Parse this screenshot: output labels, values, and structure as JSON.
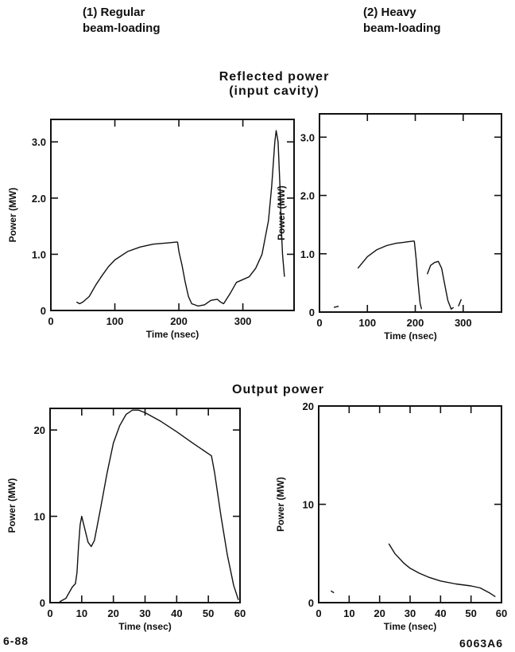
{
  "headers": {
    "col1_line1": "(1) Regular",
    "col1_line2": "beam-loading",
    "col2_line1": "(2) Heavy",
    "col2_line2": "beam-loading"
  },
  "sections": {
    "reflected_line1": "Reflected power",
    "reflected_line2": "(input cavity)",
    "output": "Output power"
  },
  "footer": {
    "left": "6-88",
    "right": "6063A6"
  },
  "chart_data": [
    {
      "id": "reflected-regular",
      "type": "line",
      "xlabel": "Time (nsec)",
      "ylabel": "Power (MW)",
      "xlim": [
        0,
        380
      ],
      "ylim": [
        0,
        3.4
      ],
      "xticks": [
        0,
        100,
        200,
        300
      ],
      "yticks": [
        0,
        1.0,
        2.0,
        3.0
      ],
      "ytick_labels": [
        "0",
        "1.0",
        "2.0",
        "3.0"
      ],
      "series": [
        {
          "segments": [
            [
              [
                40,
                0.15
              ],
              [
                45,
                0.12
              ],
              [
                50,
                0.15
              ],
              [
                60,
                0.25
              ],
              [
                70,
                0.45
              ],
              [
                80,
                0.62
              ],
              [
                90,
                0.78
              ],
              [
                100,
                0.9
              ],
              [
                120,
                1.05
              ],
              [
                140,
                1.13
              ],
              [
                160,
                1.18
              ],
              [
                180,
                1.2
              ],
              [
                198,
                1.22
              ]
            ],
            [
              [
                198,
                1.22
              ],
              [
                200,
                1.05
              ],
              [
                205,
                0.8
              ],
              [
                210,
                0.5
              ],
              [
                215,
                0.25
              ],
              [
                220,
                0.12
              ],
              [
                230,
                0.08
              ],
              [
                240,
                0.1
              ],
              [
                250,
                0.18
              ],
              [
                260,
                0.2
              ],
              [
                265,
                0.15
              ],
              [
                270,
                0.12
              ],
              [
                280,
                0.3
              ],
              [
                290,
                0.5
              ],
              [
                300,
                0.55
              ],
              [
                310,
                0.6
              ],
              [
                320,
                0.75
              ],
              [
                330,
                1.0
              ],
              [
                340,
                1.6
              ],
              [
                345,
                2.2
              ],
              [
                350,
                3.0
              ],
              [
                352,
                3.2
              ],
              [
                355,
                3.0
              ],
              [
                358,
                2.2
              ],
              [
                360,
                1.5
              ],
              [
                362,
                1.0
              ],
              [
                365,
                0.6
              ]
            ]
          ]
        }
      ]
    },
    {
      "id": "reflected-heavy",
      "type": "line",
      "xlabel": "Time (nsec)",
      "ylabel": "Power (MW)",
      "xlim": [
        0,
        380
      ],
      "ylim": [
        0,
        3.4
      ],
      "xticks": [
        0,
        100,
        200,
        300
      ],
      "yticks": [
        0,
        1.0,
        2.0,
        3.0
      ],
      "ytick_labels": [
        "0",
        "1.0",
        "2.0",
        "3.0"
      ],
      "series": [
        {
          "segments": [
            [
              [
                30,
                0.08
              ],
              [
                40,
                0.1
              ]
            ],
            [
              [
                80,
                0.75
              ],
              [
                90,
                0.85
              ],
              [
                100,
                0.95
              ],
              [
                120,
                1.07
              ],
              [
                140,
                1.14
              ],
              [
                160,
                1.18
              ],
              [
                180,
                1.2
              ],
              [
                198,
                1.22
              ]
            ],
            [
              [
                198,
                1.22
              ],
              [
                202,
                0.9
              ],
              [
                206,
                0.5
              ],
              [
                210,
                0.15
              ],
              [
                213,
                0.05
              ]
            ],
            [
              [
                225,
                0.65
              ],
              [
                232,
                0.8
              ],
              [
                240,
                0.85
              ],
              [
                248,
                0.87
              ],
              [
                255,
                0.75
              ],
              [
                262,
                0.45
              ],
              [
                268,
                0.2
              ],
              [
                275,
                0.05
              ],
              [
                280,
                0.08
              ]
            ],
            [
              [
                290,
                0.1
              ],
              [
                296,
                0.22
              ]
            ]
          ]
        }
      ]
    },
    {
      "id": "output-regular",
      "type": "line",
      "xlabel": "Time (nsec)",
      "ylabel": "Power (MW)",
      "xlim": [
        0,
        60
      ],
      "ylim": [
        0,
        22.5
      ],
      "xticks": [
        0,
        10,
        20,
        30,
        40,
        50,
        60
      ],
      "yticks": [
        0,
        10,
        20
      ],
      "ytick_labels": [
        "0",
        "10",
        "20"
      ],
      "series": [
        {
          "segments": [
            [
              [
                3,
                0.1
              ],
              [
                5,
                0.5
              ],
              [
                7,
                1.8
              ],
              [
                8,
                2.2
              ],
              [
                8.5,
                3.5
              ],
              [
                9,
                6.5
              ],
              [
                9.5,
                9.0
              ],
              [
                10,
                10.0
              ],
              [
                11,
                8.5
              ],
              [
                12,
                7.0
              ],
              [
                13,
                6.5
              ],
              [
                14,
                7.2
              ],
              [
                16,
                11.0
              ],
              [
                18,
                15.0
              ],
              [
                20,
                18.5
              ],
              [
                22,
                20.5
              ],
              [
                24,
                21.8
              ],
              [
                26,
                22.3
              ],
              [
                28,
                22.3
              ],
              [
                30,
                22.0
              ],
              [
                35,
                21.0
              ],
              [
                40,
                19.8
              ],
              [
                45,
                18.5
              ],
              [
                51,
                17.0
              ],
              [
                52,
                15.0
              ],
              [
                54,
                10.0
              ],
              [
                56,
                5.5
              ],
              [
                58,
                2.0
              ],
              [
                59.5,
                0.3
              ]
            ]
          ]
        }
      ]
    },
    {
      "id": "output-heavy",
      "type": "line",
      "xlabel": "Time (nsec)",
      "ylabel": "Power (MW)",
      "xlim": [
        0,
        60
      ],
      "ylim": [
        0,
        20
      ],
      "xticks": [
        0,
        10,
        20,
        30,
        40,
        50,
        60
      ],
      "yticks": [
        0,
        10,
        20
      ],
      "ytick_labels": [
        "0",
        "10",
        "20"
      ],
      "series": [
        {
          "segments": [
            [
              [
                4,
                1.2
              ],
              [
                5,
                1.0
              ]
            ],
            [
              [
                23,
                6.0
              ],
              [
                25,
                5.0
              ],
              [
                28,
                4.0
              ],
              [
                30,
                3.5
              ],
              [
                33,
                3.0
              ],
              [
                36,
                2.6
              ],
              [
                40,
                2.2
              ],
              [
                45,
                1.9
              ],
              [
                50,
                1.7
              ],
              [
                53,
                1.5
              ],
              [
                56,
                1.0
              ],
              [
                58,
                0.6
              ]
            ]
          ]
        }
      ]
    }
  ]
}
